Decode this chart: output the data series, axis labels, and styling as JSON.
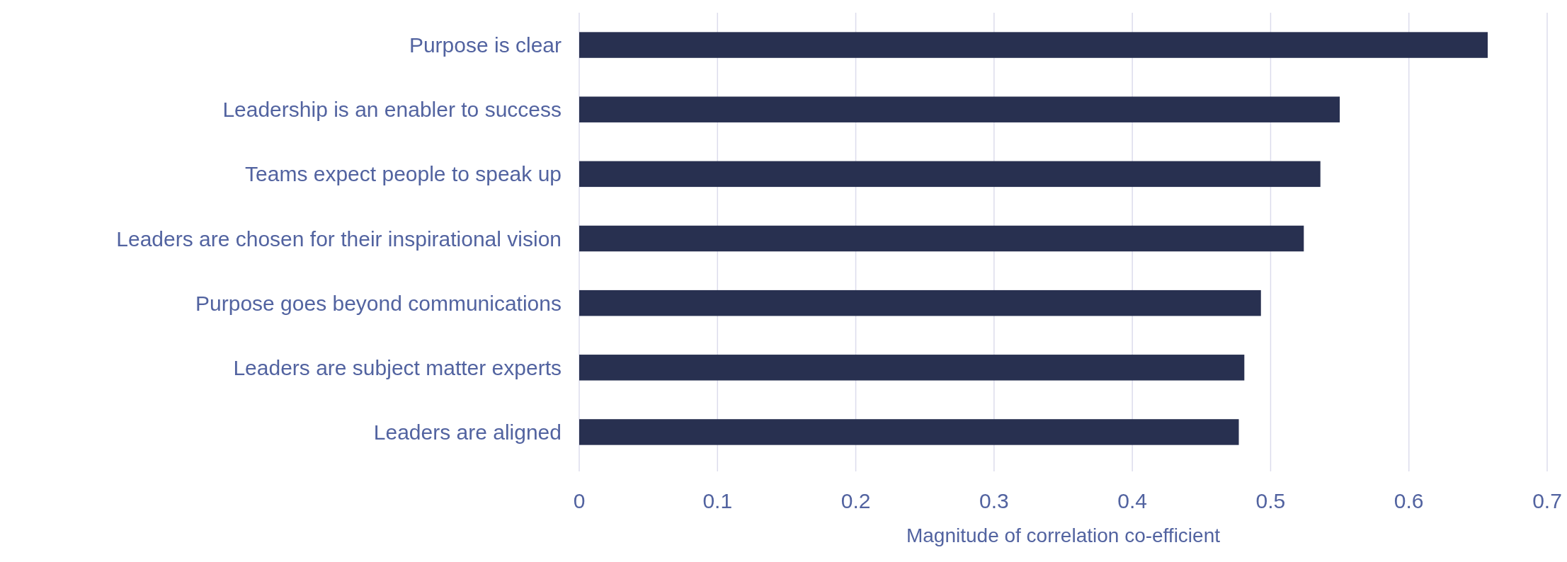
{
  "chart_data": {
    "type": "bar",
    "orientation": "horizontal",
    "xlabel": "Magnitude of correlation co-efficient",
    "categories": [
      "Purpose is clear",
      "Leadership is an enabler to success",
      "Teams expect people to speak up",
      "Leaders are chosen for their inspirational vision",
      "Purpose goes beyond communications",
      "Leaders are subject matter experts",
      "Leaders are aligned"
    ],
    "values": [
      0.657,
      0.55,
      0.536,
      0.524,
      0.493,
      0.481,
      0.477
    ],
    "color": "#283050",
    "xlim": [
      0,
      0.7
    ],
    "xticks": [
      0,
      0.1,
      0.2,
      0.3,
      0.4,
      0.5,
      0.6,
      0.7
    ],
    "grid": "x"
  }
}
